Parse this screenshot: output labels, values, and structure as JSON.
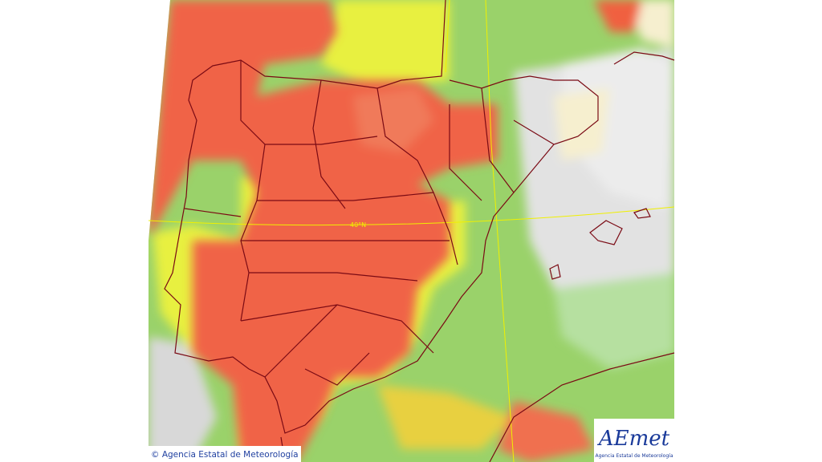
{
  "map": {
    "graticule_label": "40°N"
  },
  "footer": {
    "copyright": "© Agencia Estatal de Meteorología"
  },
  "logo": {
    "mark": "AEmet",
    "caption": "Agencia Estatal de Meteorología"
  }
}
